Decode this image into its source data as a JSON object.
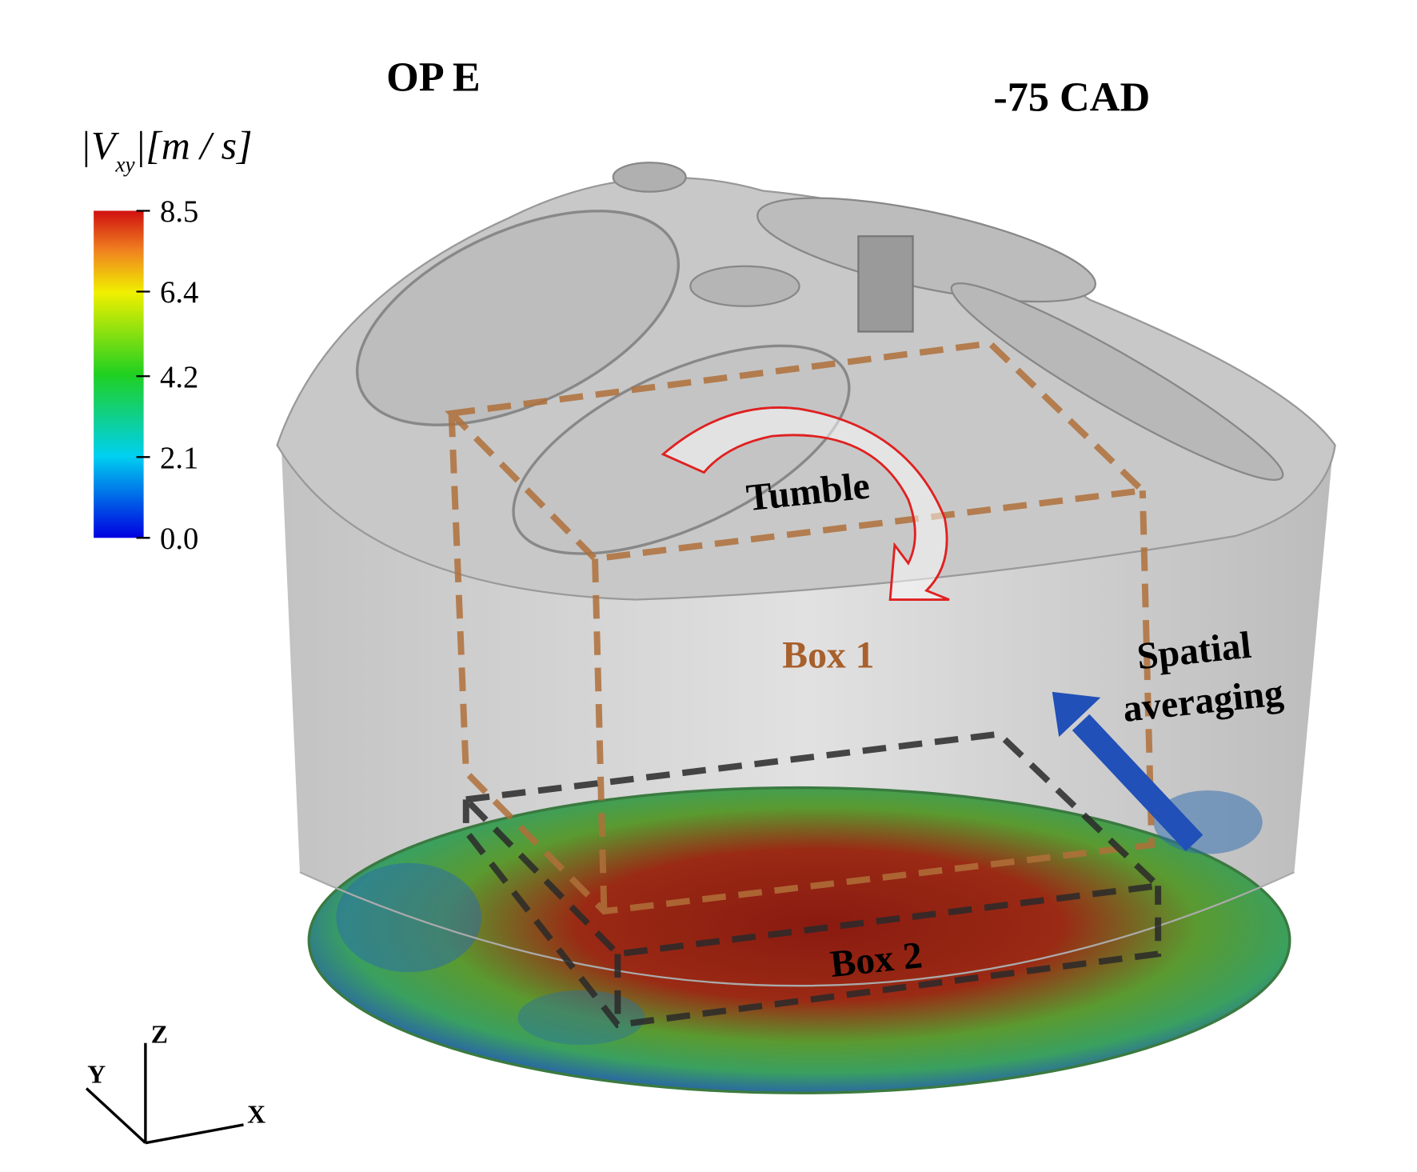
{
  "header": {
    "case": "OP E",
    "crank_angle": "-75 CAD"
  },
  "colorbar": {
    "label": {
      "before": "|V",
      "subscript": "xy",
      "after": "|[m / s]"
    },
    "range": [
      0,
      8.5
    ],
    "ticks": [
      {
        "value": 0,
        "label": "0.0"
      },
      {
        "value": 2.1,
        "label": "2.1"
      },
      {
        "value": 4.2,
        "label": "4.2"
      },
      {
        "value": 6.4,
        "label": "6.4"
      },
      {
        "value": 8.5,
        "label": "8.5"
      }
    ]
  },
  "annotations": {
    "tumble": "Tumble",
    "box1": "Box 1",
    "box2": "Box 2",
    "spatial": [
      "Spatial",
      "averaging"
    ]
  },
  "axes": {
    "z": "Z",
    "y": "Y",
    "x": "X"
  }
}
